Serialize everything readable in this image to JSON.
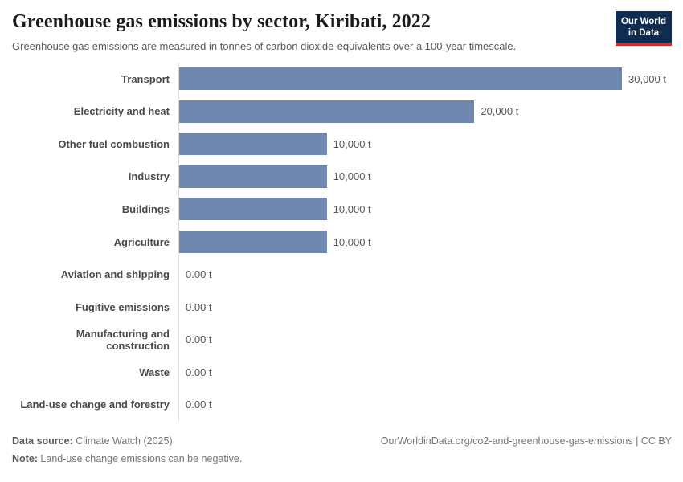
{
  "header": {
    "title": "Greenhouse gas emissions by sector, Kiribati, 2022",
    "subtitle": "Greenhouse gas emissions are measured in tonnes of carbon dioxide-equivalents over a 100-year timescale.",
    "logo": {
      "line1": "Our World",
      "line2": "in Data"
    }
  },
  "chart_data": {
    "type": "bar",
    "orientation": "horizontal",
    "title": "Greenhouse gas emissions by sector, Kiribati, 2022",
    "unit": "t",
    "xlim": [
      0,
      30000
    ],
    "grid": false,
    "bar_color": "#7088b0",
    "categories": [
      "Transport",
      "Electricity and heat",
      "Other fuel combustion",
      "Industry",
      "Buildings",
      "Agriculture",
      "Aviation and shipping",
      "Fugitive emissions",
      "Manufacturing and construction",
      "Waste",
      "Land-use change and forestry"
    ],
    "values": [
      30000,
      20000,
      10000,
      10000,
      10000,
      10000,
      0,
      0,
      0,
      0,
      0
    ],
    "value_labels": [
      "30,000 t",
      "20,000 t",
      "10,000 t",
      "10,000 t",
      "10,000 t",
      "10,000 t",
      "0.00 t",
      "0.00 t",
      "0.00 t",
      "0.00 t",
      "0.00 t"
    ]
  },
  "footer": {
    "data_source_label": "Data source:",
    "data_source_value": " Climate Watch (2025)",
    "note_label": "Note:",
    "note_value": " Land-use change emissions can be negative.",
    "link": "OurWorldinData.org/co2-and-greenhouse-gas-emissions | CC BY"
  },
  "colors": {
    "bar": "#7088b0",
    "axis_line": "#dcdcdc",
    "title_text": "#1c1c1c",
    "subtitle_text": "#5b5b5b",
    "label_text": "#4a4a4a",
    "value_text": "#575757",
    "footer_text": "#757575",
    "logo_navy": "#0f2d50",
    "logo_red": "#c8322a"
  }
}
